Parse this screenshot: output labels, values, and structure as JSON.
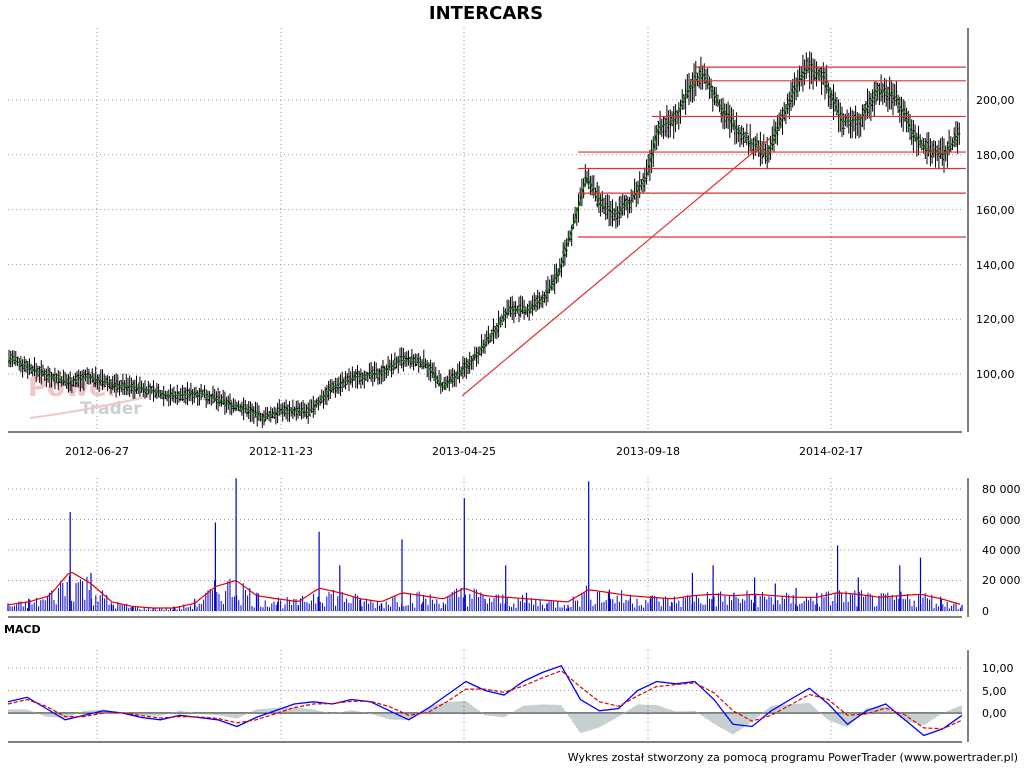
{
  "title": "INTERCARS",
  "footer": "Wykres został stworzony za pomocą programu PowerTrader (www.powertrader.pl)",
  "watermark": {
    "line1": "Power",
    "line2": "Trader"
  },
  "price_panel": {
    "x_ticks": [
      "2012-06-27",
      "2012-11-23",
      "2013-04-25",
      "2013-09-18",
      "2014-02-17"
    ],
    "y_ticks": [
      "100,00",
      "120,00",
      "140,00",
      "160,00",
      "180,00",
      "200,00"
    ]
  },
  "volume_panel": {
    "y_ticks": [
      "0",
      "20 000",
      "40 000",
      "60 000",
      "80 000"
    ]
  },
  "macd_panel": {
    "label": "MACD",
    "y_ticks": [
      "0,00",
      "5,00",
      "10,00"
    ]
  },
  "colors": {
    "price_bars": "#000000",
    "price_trend": "#007a00",
    "levels": "#e03030",
    "trendline": "#e03030",
    "volume_bars": "#0000cc",
    "volume_avg": "#e00000",
    "macd_line": "#0000ff",
    "signal_line": "#e00000",
    "histogram": "#8fa0a0"
  },
  "chart_data": [
    {
      "type": "line",
      "panel": "price",
      "title": "INTERCARS",
      "ylim": [
        85,
        220
      ],
      "x_range": [
        "2012-04-20",
        "2014-07-10"
      ],
      "series": [
        {
          "x": [
            "2012-04-20",
            "2012-05-15",
            "2012-06-10",
            "2012-06-27",
            "2012-07-20",
            "2012-08-10",
            "2012-09-05",
            "2012-10-01",
            "2012-10-25",
            "2012-11-10",
            "2012-11-23",
            "2012-12-10",
            "2013-01-01",
            "2013-01-20",
            "2013-02-10",
            "2013-03-01",
            "2013-03-20",
            "2013-04-10",
            "2013-04-25",
            "2013-05-15",
            "2013-06-05",
            "2013-06-20",
            "2013-07-05",
            "2013-07-20",
            "2013-08-01",
            "2013-08-12",
            "2013-08-25",
            "2013-09-05",
            "2013-09-18",
            "2013-10-01",
            "2013-10-15",
            "2013-10-25",
            "2013-11-08",
            "2013-11-20",
            "2013-12-01",
            "2013-12-15",
            "2013-12-25",
            "2014-01-10",
            "2014-01-25",
            "2014-02-05",
            "2014-02-17",
            "2014-02-28",
            "2014-03-15",
            "2014-03-30",
            "2014-04-15",
            "2014-04-30",
            "2014-05-15",
            "2014-05-30",
            "2014-06-10",
            "2014-06-25",
            "2014-07-08"
          ],
          "values": [
            106,
            101,
            97,
            99,
            96,
            95,
            92,
            93,
            89,
            87,
            84,
            87,
            86,
            95,
            99,
            100,
            105,
            104,
            95,
            103,
            114,
            124,
            123,
            128,
            137,
            152,
            172,
            162,
            158,
            163,
            172,
            190,
            193,
            204,
            210,
            199,
            192,
            185,
            180,
            191,
            203,
            212,
            208,
            192,
            193,
            204,
            201,
            187,
            182,
            180,
            188
          ]
        }
      ]
    },
    {
      "type": "bar",
      "panel": "volume",
      "ylim": [
        0,
        90000
      ],
      "series": [
        {
          "name": "volume",
          "values": [
            5000,
            8000,
            12000,
            65000,
            25000,
            4000,
            3000,
            2000,
            3000,
            8000,
            58000,
            87000,
            12000,
            6000,
            4000,
            52000,
            30000,
            8000,
            5000,
            47000,
            6000,
            4000,
            74000,
            8000,
            30000,
            12000,
            5000,
            4000,
            85000,
            14000,
            8000,
            10000,
            6000,
            25000,
            30000,
            12000,
            22000,
            18000,
            15000,
            12000,
            43000,
            22000,
            10000,
            30000,
            35000,
            8000,
            4000
          ]
        },
        {
          "name": "average",
          "values": [
            4000,
            6000,
            10000,
            26000,
            18000,
            6000,
            3000,
            2000,
            2000,
            5000,
            16000,
            20000,
            10000,
            8000,
            6000,
            15000,
            12000,
            8000,
            6000,
            12000,
            10000,
            8000,
            15000,
            10000,
            9000,
            8000,
            7000,
            6000,
            14000,
            12000,
            10000,
            9000,
            8000,
            10000,
            11000,
            10000,
            11000,
            10000,
            9000,
            9000,
            12000,
            11000,
            9000,
            10000,
            11000,
            8000,
            4000
          ]
        }
      ]
    },
    {
      "type": "line",
      "panel": "macd",
      "title": "MACD",
      "ylim": [
        -8,
        13
      ],
      "series": [
        {
          "name": "MACD",
          "values": [
            2.5,
            3.5,
            1.0,
            -1.5,
            -0.5,
            0.5,
            0.0,
            -1.0,
            -1.5,
            -0.5,
            -1.0,
            -1.5,
            -3.0,
            -1.0,
            0.5,
            2.0,
            2.5,
            2.0,
            3.0,
            2.5,
            0.5,
            -1.5,
            1.0,
            4.0,
            7.0,
            5.0,
            4.0,
            7.0,
            9.0,
            10.5,
            3.0,
            0.5,
            1.0,
            5.0,
            7.0,
            6.5,
            7.0,
            3.0,
            -2.5,
            -3.0,
            0.5,
            3.0,
            5.5,
            2.0,
            -2.5,
            0.5,
            2.0,
            -1.5,
            -5.0,
            -3.5,
            -0.5
          ]
        },
        {
          "name": "Signal",
          "values": [
            2.0,
            3.0,
            1.5,
            -0.8,
            -0.8,
            0.0,
            0.1,
            -0.6,
            -1.1,
            -0.8,
            -0.9,
            -1.2,
            -2.2,
            -1.5,
            -0.2,
            1.2,
            2.0,
            2.1,
            2.6,
            2.6,
            1.4,
            -0.5,
            0.1,
            2.5,
            5.3,
            5.3,
            4.6,
            6.0,
            7.8,
            9.4,
            5.8,
            2.5,
            1.5,
            3.8,
            5.9,
            6.3,
            6.7,
            4.5,
            0.5,
            -1.8,
            -0.5,
            1.8,
            4.1,
            3.0,
            -0.5,
            -0.2,
            1.1,
            -0.4,
            -3.3,
            -3.5,
            -1.6
          ]
        }
      ]
    }
  ]
}
